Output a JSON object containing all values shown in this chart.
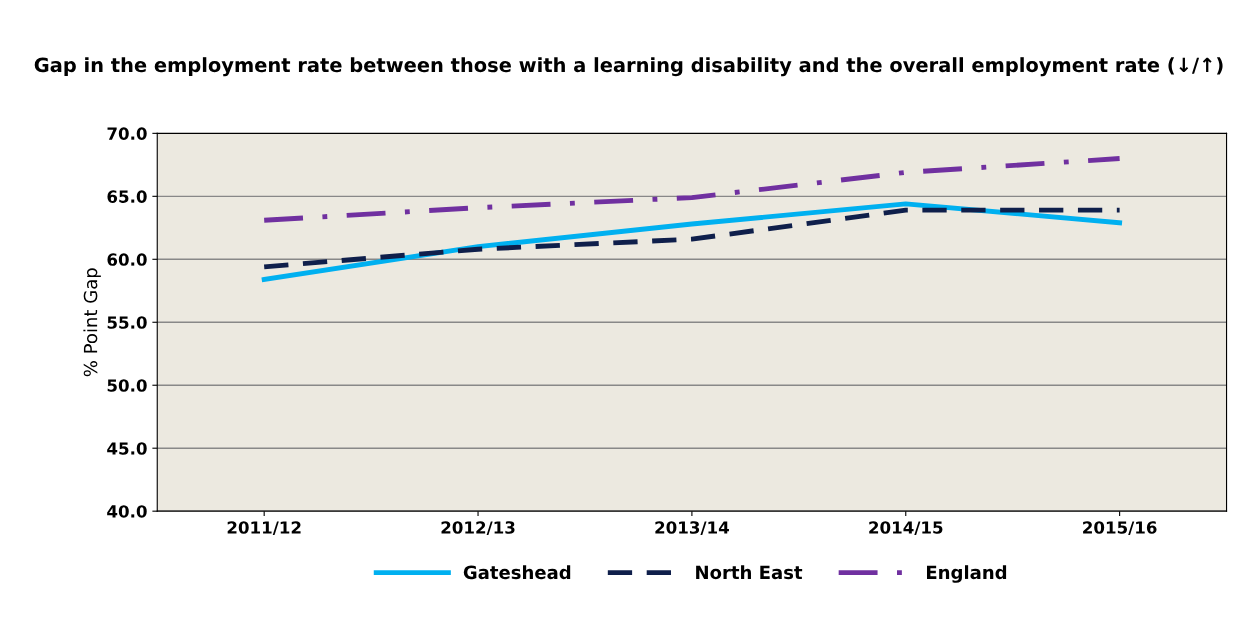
{
  "chart_data": {
    "type": "line",
    "title": "Gap in the employment rate between those with a learning disability and the overall employment rate (↓/↑)",
    "ylabel": "% Point Gap",
    "categories": [
      "2011/12",
      "2012/13",
      "2013/14",
      "2014/15",
      "2015/16"
    ],
    "series": [
      {
        "name": "Gateshead",
        "color": "#00b0f0",
        "line_style": "solid",
        "values": [
          58.4,
          61.0,
          62.8,
          64.4,
          62.9
        ]
      },
      {
        "name": "North East",
        "color": "#0f1f4b",
        "line_style": "dashed",
        "values": [
          59.4,
          60.8,
          61.6,
          63.9,
          63.9
        ]
      },
      {
        "name": "England",
        "color": "#7030a0",
        "line_style": "dashdot",
        "values": [
          63.1,
          64.1,
          64.9,
          66.9,
          68.0
        ]
      }
    ],
    "ylim": [
      40,
      70
    ],
    "yticks": [
      {
        "value": 40,
        "label": "40.0"
      },
      {
        "value": 45,
        "label": "45.0"
      },
      {
        "value": 50,
        "label": "50.0"
      },
      {
        "value": 55,
        "label": "55.0"
      },
      {
        "value": 60,
        "label": "60.0"
      },
      {
        "value": 65,
        "label": "65.0"
      },
      {
        "value": 70,
        "label": "70.0"
      }
    ],
    "grid": "y",
    "legend": "bottom",
    "marker": "none"
  }
}
